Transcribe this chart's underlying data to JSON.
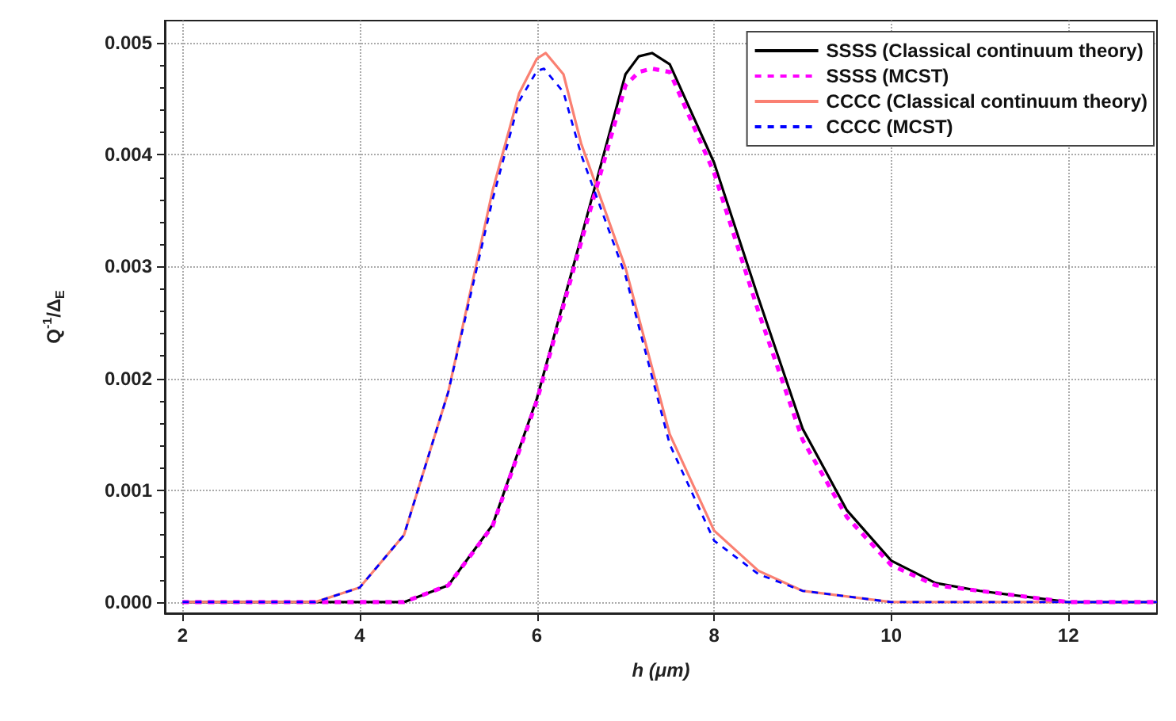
{
  "chart_data": {
    "type": "line",
    "xlabel": "h (μm)",
    "ylabel": "Q$^{-1}$/Δ$_{E}$",
    "xlim": [
      1.8,
      13
    ],
    "xticks": [
      2,
      4,
      6,
      8,
      10,
      12
    ],
    "ylim": [
      -0.0001,
      0.0052
    ],
    "yticks": [
      {
        "value": 0,
        "label": "0.000"
      },
      {
        "value": 0.001,
        "label": "0.001"
      },
      {
        "value": 0.002,
        "label": "0.002"
      },
      {
        "value": 0.003,
        "label": "0.003"
      },
      {
        "value": 0.004,
        "label": "0.004"
      },
      {
        "value": 0.005,
        "label": "0.005"
      }
    ],
    "grid": true,
    "legend": "top right",
    "marker": "none",
    "series": [
      {
        "name": "SSSS (Classical continuum theory)",
        "color": "#000000",
        "line_style": "solid",
        "x": [
          2,
          3,
          4,
          4.5,
          5,
          5.5,
          6,
          6.5,
          7,
          7.15,
          7.3,
          7.5,
          8,
          8.5,
          9,
          9.5,
          10,
          10.5,
          11,
          12,
          13
        ],
        "values": [
          0,
          0,
          0,
          0,
          0.00015,
          0.00069,
          0.00182,
          0.00326,
          0.00472,
          0.00488,
          0.00491,
          0.00481,
          0.00393,
          0.00272,
          0.00155,
          0.00082,
          0.00037,
          0.00017,
          0.0001,
          0,
          0
        ]
      },
      {
        "name": "SSSS (MCST)",
        "color": "#ff00ff",
        "line_style": "dashed",
        "x": [
          2,
          3,
          4,
          4.5,
          5,
          5.5,
          6,
          6.5,
          7,
          7.15,
          7.3,
          7.5,
          8,
          8.5,
          9,
          9.5,
          10,
          10.5,
          11,
          12,
          13
        ],
        "values": [
          0,
          0,
          0,
          0,
          0.00015,
          0.00068,
          0.0018,
          0.00322,
          0.00462,
          0.00474,
          0.00477,
          0.00474,
          0.00384,
          0.0026,
          0.00145,
          0.00076,
          0.00033,
          0.00015,
          0.0001,
          0,
          0
        ]
      },
      {
        "name": "CCCC (Classical continuum theory)",
        "color": "#fa8072",
        "line_style": "solid",
        "x": [
          2,
          3,
          3.5,
          4,
          4.5,
          5,
          5.5,
          5.8,
          6,
          6.1,
          6.3,
          6.5,
          7,
          7.5,
          8,
          8.5,
          9,
          10,
          11,
          12,
          13
        ],
        "values": [
          0,
          0,
          0,
          0.00013,
          0.0006,
          0.00188,
          0.00368,
          0.00455,
          0.00486,
          0.00491,
          0.00472,
          0.0041,
          0.00299,
          0.0015,
          0.00064,
          0.00028,
          0.0001,
          0,
          0,
          0,
          0
        ]
      },
      {
        "name": "CCCC (MCST)",
        "color": "#0000ff",
        "line_style": "dashed",
        "x": [
          2,
          3,
          3.5,
          4,
          4.5,
          5,
          5.5,
          5.8,
          6,
          6.08,
          6.3,
          6.5,
          7,
          7.5,
          8,
          8.5,
          9,
          10,
          11,
          12,
          13
        ],
        "values": [
          0,
          0,
          0,
          0.00013,
          0.0006,
          0.00188,
          0.0036,
          0.00448,
          0.00475,
          0.00477,
          0.00456,
          0.004,
          0.00292,
          0.00141,
          0.00055,
          0.00025,
          0.0001,
          0,
          0,
          0,
          0
        ]
      }
    ]
  }
}
